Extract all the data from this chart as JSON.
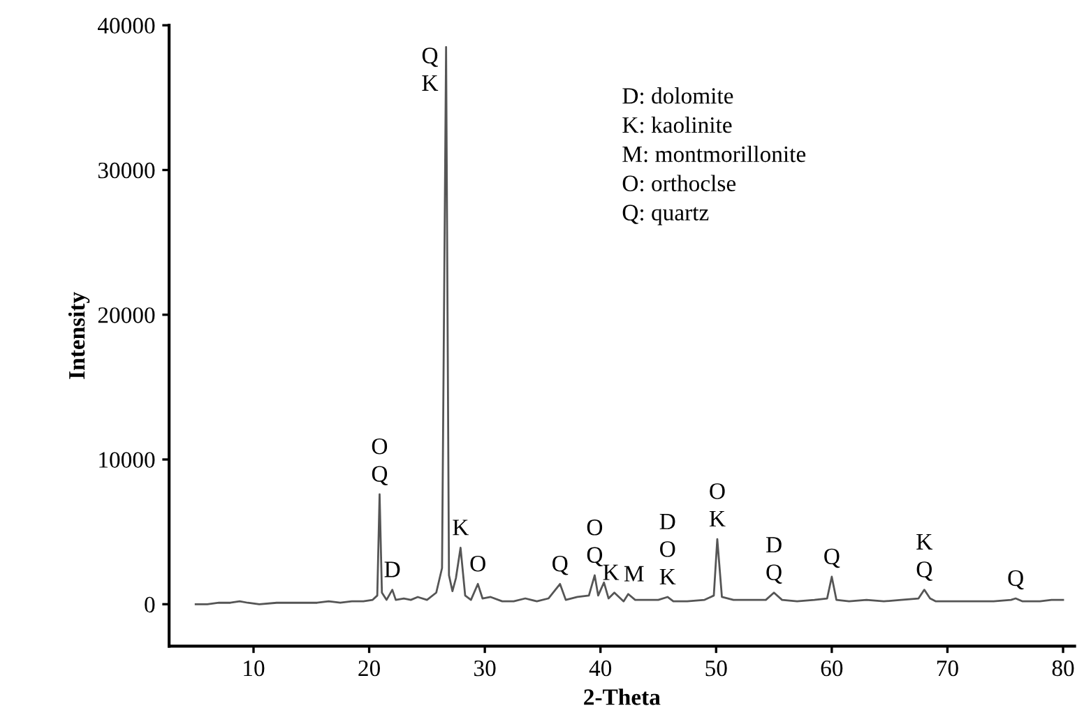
{
  "chart_data": {
    "type": "line",
    "xlabel": "2-Theta",
    "ylabel": "Intensity",
    "x": [
      5,
      6,
      7,
      8,
      8.8,
      9.5,
      10.5,
      12,
      13.5,
      14.5,
      15.5,
      16.5,
      17.5,
      18.5,
      19.5,
      20.3,
      20.7,
      20.9,
      21.1,
      21.5,
      22,
      22.3,
      23,
      23.6,
      24.2,
      25,
      25.8,
      26.3,
      26.65,
      26.9,
      27.2,
      27.5,
      27.9,
      28.3,
      28.8,
      29.4,
      29.8,
      30.5,
      31.5,
      32.5,
      33.5,
      34.5,
      35.5,
      36.5,
      37,
      38,
      39,
      39.5,
      39.8,
      40.3,
      40.7,
      41.2,
      42,
      42.4,
      43,
      44,
      45,
      45.8,
      46.3,
      47.5,
      49,
      49.8,
      50.1,
      50.5,
      51.5,
      53,
      54.3,
      55,
      55.7,
      57,
      58.5,
      59.6,
      60,
      60.4,
      61.5,
      63,
      64.5,
      66,
      67.5,
      68,
      68.5,
      69,
      70.5,
      72,
      74,
      75.5,
      75.9,
      76.5,
      78,
      79,
      80
    ],
    "values": [
      0,
      0,
      100,
      100,
      200,
      100,
      0,
      100,
      100,
      100,
      100,
      200,
      100,
      200,
      200,
      300,
      600,
      7600,
      800,
      300,
      1000,
      300,
      400,
      300,
      500,
      300,
      800,
      2500,
      38500,
      2000,
      900,
      1800,
      3900,
      600,
      300,
      1400,
      400,
      500,
      200,
      200,
      400,
      200,
      400,
      1400,
      300,
      500,
      600,
      2000,
      600,
      1500,
      400,
      800,
      200,
      700,
      300,
      300,
      300,
      500,
      200,
      200,
      300,
      600,
      4500,
      500,
      300,
      300,
      300,
      800,
      300,
      200,
      300,
      400,
      1900,
      300,
      200,
      300,
      200,
      300,
      400,
      1000,
      400,
      200,
      200,
      200,
      200,
      300,
      400,
      200,
      200,
      300,
      300
    ],
    "color": "#555555",
    "xlim": [
      2.7,
      81
    ],
    "ylim": [
      -2900,
      40000
    ],
    "xticks": [
      10,
      20,
      30,
      40,
      50,
      60,
      70,
      80
    ],
    "yticks": [
      0,
      10000,
      20000,
      30000,
      40000
    ],
    "grid": false,
    "marker": "none",
    "line_style": "solid",
    "annotations": [
      "D: dolomite\nK: kaolinite\nM: montmorillonite\nO: orthoclse\nQ: quartz",
      {
        "text": "O\nQ",
        "x": 20.9,
        "y": 7600
      },
      {
        "text": "Q\nK",
        "x": 26.65,
        "y": 38500
      },
      {
        "text": "D",
        "x": 22,
        "y": 1000
      },
      {
        "text": "K",
        "x": 27.9,
        "y": 3900
      },
      {
        "text": "O",
        "x": 29.4,
        "y": 1400
      },
      {
        "text": "Q",
        "x": 36.5,
        "y": 1400
      },
      {
        "text": "O\nQ",
        "x": 39.5,
        "y": 2000
      },
      {
        "text": "K",
        "x": 40.9,
        "y": 800
      },
      {
        "text": "M",
        "x": 42.9,
        "y": 700
      },
      {
        "text": "D\nO\nK",
        "x": 45.8,
        "y": 500
      },
      {
        "text": "O\nK",
        "x": 50.1,
        "y": 4500
      },
      {
        "text": "D\nQ",
        "x": 55,
        "y": 800
      },
      {
        "text": "Q",
        "x": 60,
        "y": 1900
      },
      {
        "text": "K\nQ",
        "x": 68,
        "y": 1000
      },
      {
        "text": "Q",
        "x": 75.9,
        "y": 400
      }
    ]
  }
}
